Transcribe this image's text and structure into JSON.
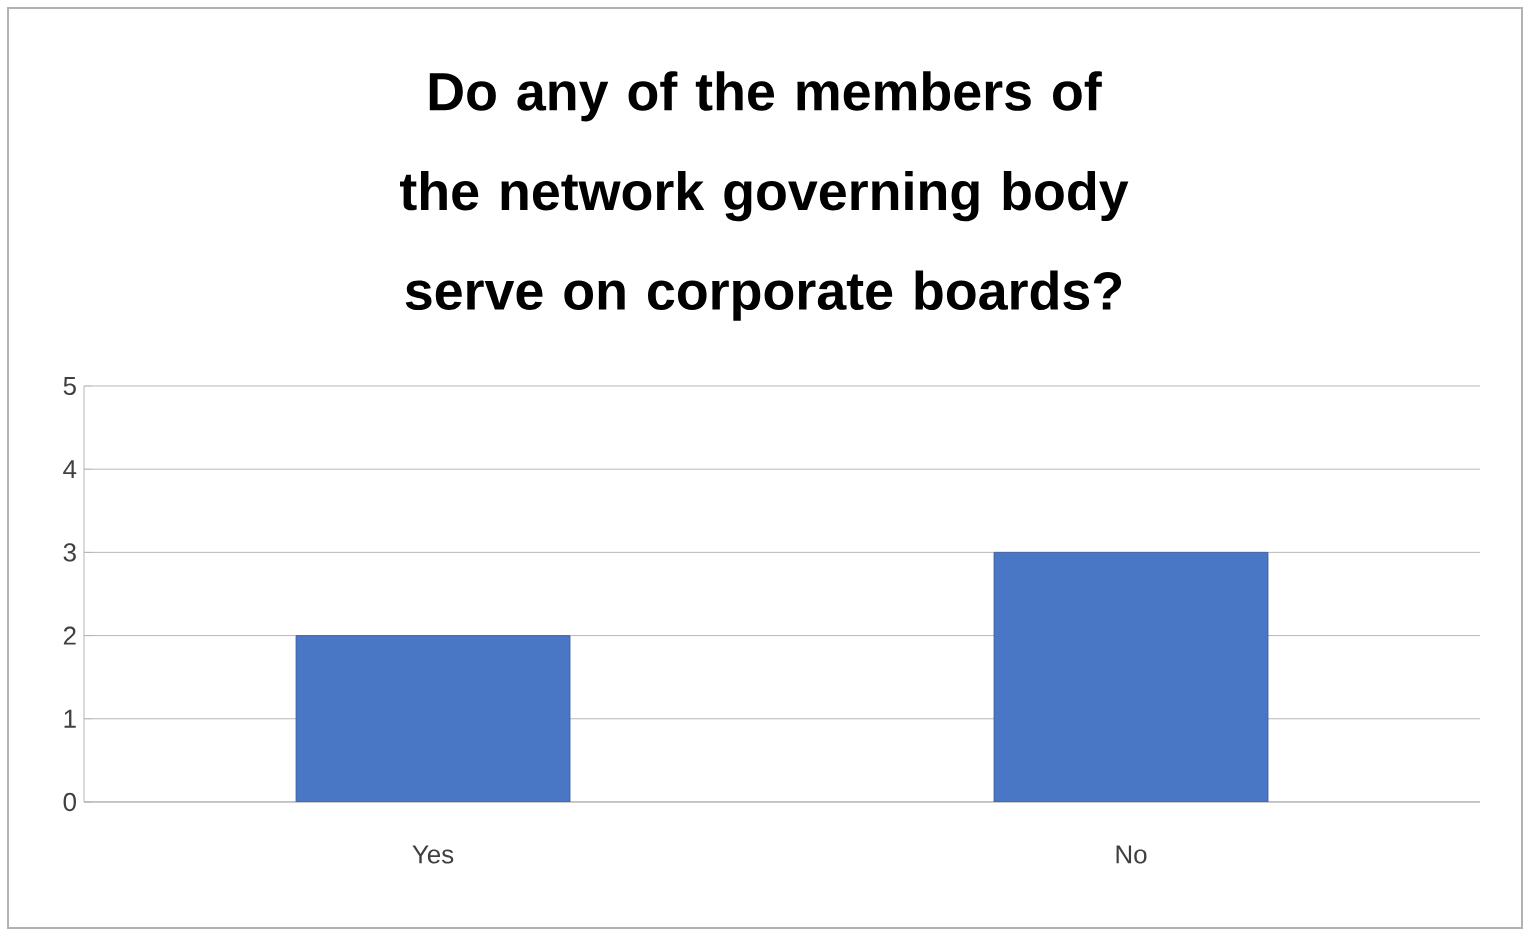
{
  "chart_data": {
    "type": "bar",
    "title": "Do any of the members of the network governing body serve on corporate boards?",
    "categories": [
      "Yes",
      "No"
    ],
    "values": [
      2,
      3
    ],
    "color": "#4a76c6",
    "ylim": [
      0,
      5
    ],
    "yticks": [
      0,
      1,
      2,
      3,
      4,
      5
    ],
    "grid": "y"
  }
}
